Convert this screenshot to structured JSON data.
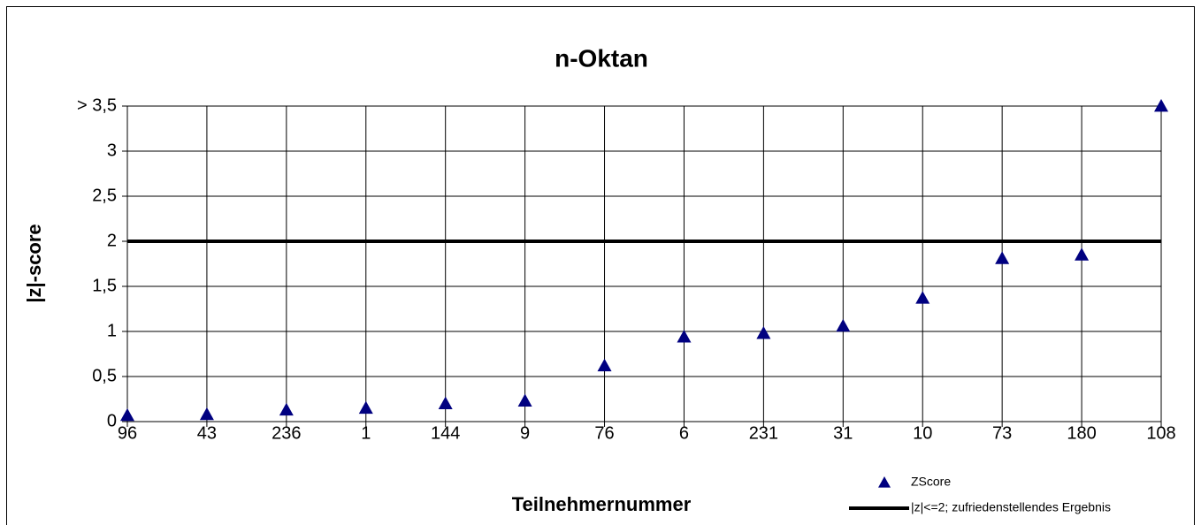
{
  "chart_data": {
    "type": "scatter",
    "title": "n-Oktan",
    "x_label": "Teilnehmernummer",
    "y_label": "|z|-score",
    "categories": [
      "96",
      "43",
      "236",
      "1",
      "144",
      "9",
      "76",
      "6",
      "231",
      "31",
      "10",
      "73",
      "180",
      "108"
    ],
    "series": [
      {
        "name": "ZScore",
        "color": "#000080",
        "marker": "triangle",
        "values": [
          0.07,
          0.08,
          0.13,
          0.15,
          0.2,
          0.23,
          0.62,
          0.94,
          0.98,
          1.06,
          1.37,
          1.81,
          1.85,
          3.5
        ]
      }
    ],
    "threshold": {
      "name": "|z|<=2; zufriedenstellendes Ergebnis",
      "value": 2,
      "color": "#000000"
    },
    "ylim": [
      0,
      3.5
    ],
    "yticks": [
      0,
      {
        "value": 0.5,
        "label": "0,5"
      },
      1,
      {
        "value": 1.5,
        "label": "1,5"
      },
      2,
      {
        "value": 2.5,
        "label": "2,5"
      },
      3,
      {
        "value": 3.5,
        "label": "> 3,5"
      }
    ],
    "grid": true,
    "legend": "bottom-right"
  }
}
